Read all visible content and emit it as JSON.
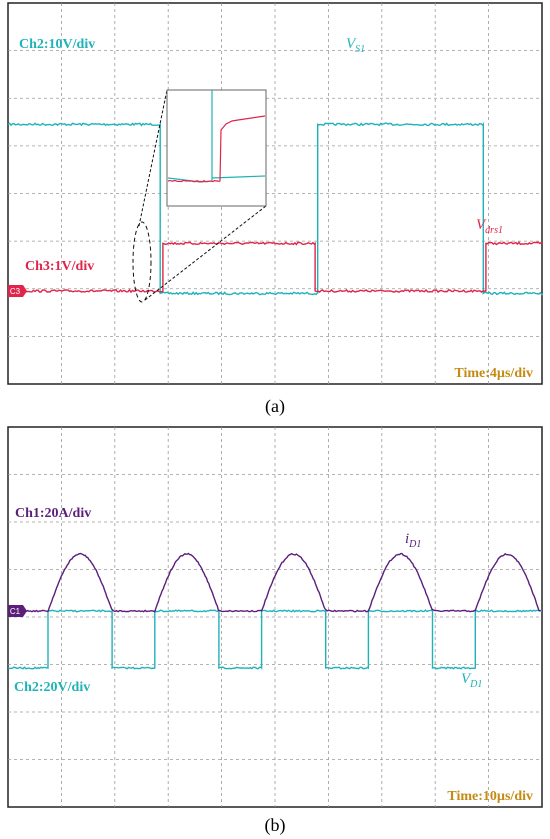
{
  "colors": {
    "cyan": "#1fb3b8",
    "red": "#e0244a",
    "purple": "#5b1f7a",
    "time": "#c48a12",
    "grid": "#8a8a8a",
    "frame": "#222222"
  },
  "chart_data": [
    {
      "type": "line",
      "panel": "(a)",
      "grid": true,
      "divisions": {
        "x": 10,
        "y": 8
      },
      "time_scale": "Time:4µs/div",
      "channels": [
        {
          "name": "Ch2:10V/div",
          "color": "cyan",
          "signal": "VS1",
          "signal_main": "V",
          "signal_sub": "S1"
        },
        {
          "name": "Ch3:1V/div",
          "color": "red",
          "signal": "Vdrs1",
          "signal_main": "V",
          "signal_sub": "drs1",
          "marker": "C3"
        }
      ],
      "series": [
        {
          "name": "V_S1",
          "x_div": [
            0,
            2.85,
            2.85,
            5.8,
            5.8,
            8.9,
            8.9,
            10
          ],
          "y_div": [
            3.5,
            3.5,
            -0.05,
            -0.05,
            3.5,
            3.5,
            -0.05,
            -0.05
          ]
        },
        {
          "name": "V_drs1",
          "x_div": [
            0,
            2.9,
            2.9,
            5.75,
            5.75,
            8.95,
            8.95,
            10
          ],
          "y_div": [
            0,
            0,
            1.0,
            1.0,
            0,
            0,
            1.0,
            1.0
          ]
        }
      ],
      "zoom_inset": true
    },
    {
      "type": "line",
      "panel": "(b)",
      "grid": true,
      "divisions": {
        "x": 10,
        "y": 8
      },
      "time_scale": "Time:10µs/div",
      "channels": [
        {
          "name": "Ch1:20A/div",
          "color": "purple",
          "signal": "iD1",
          "signal_main": "i",
          "signal_sub": "D1",
          "marker": "C1"
        },
        {
          "name": "Ch2:20V/div",
          "color": "cyan",
          "signal": "VD1",
          "signal_main": "V",
          "signal_sub": "D1"
        }
      ],
      "series": [
        {
          "name": "i_D1",
          "pulses_x_div": [
            [
              0.75,
              1.95
            ],
            [
              2.75,
              3.95
            ],
            [
              4.75,
              5.95
            ],
            [
              6.75,
              7.95
            ],
            [
              8.75,
              9.95
            ]
          ],
          "peak_div": 1.2,
          "base_div": 0
        },
        {
          "name": "V_D1",
          "low_x_div": [
            [
              0,
              0.75
            ],
            [
              1.95,
              2.75
            ],
            [
              3.95,
              4.75
            ],
            [
              5.95,
              6.75
            ],
            [
              7.95,
              8.75
            ]
          ],
          "high_div": 0,
          "low_div": -1.2
        }
      ]
    }
  ]
}
